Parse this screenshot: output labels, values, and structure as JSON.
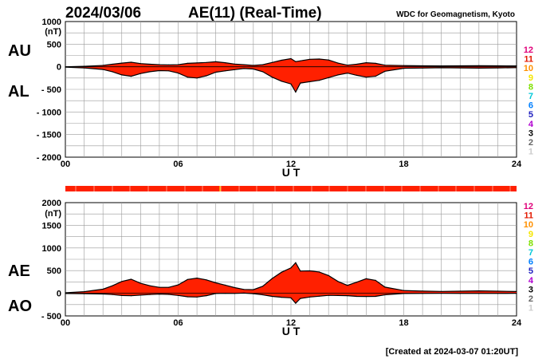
{
  "header": {
    "date": "2024/03/06",
    "title": "AE(11) (Real-Time)",
    "source": "WDC for Geomagnetism, Kyoto"
  },
  "footer": {
    "created": "[Created at 2024-03-07 01:20UT]"
  },
  "level_scale": [
    {
      "label": "12",
      "color": "#e0007a"
    },
    {
      "label": "11",
      "color": "#e31a00"
    },
    {
      "label": "10",
      "color": "#ff9000"
    },
    {
      "label": "9",
      "color": "#f5e600"
    },
    {
      "label": "8",
      "color": "#7fe000"
    },
    {
      "label": "7",
      "color": "#00c8d8"
    },
    {
      "label": "6",
      "color": "#0080ff"
    },
    {
      "label": "5",
      "color": "#2020c0"
    },
    {
      "label": "4",
      "color": "#b000d0"
    },
    {
      "label": "3",
      "color": "#000000"
    },
    {
      "label": "2",
      "color": "#666666"
    },
    {
      "label": "1",
      "color": "#cccccc"
    }
  ],
  "colors": {
    "fill": "#ff2000",
    "bar": "#ff2000",
    "line": "#000000",
    "grid": "#9a9a9a"
  },
  "station_bar": {
    "level": "11"
  },
  "chart_data": [
    {
      "type": "area",
      "title": "AU / AL",
      "unit": "(nT)",
      "xlabel": "U T",
      "x_ticks": [
        "00",
        "06",
        "12",
        "18",
        "24"
      ],
      "xlim": [
        0,
        24
      ],
      "ylim": [
        -2000,
        1000
      ],
      "y_ticks": [
        "1000",
        "500",
        "0",
        "- 500",
        "- 1000",
        "- 1500",
        "- 2000"
      ],
      "y_tick_values": [
        1000,
        500,
        0,
        -500,
        -1000,
        -1500,
        -2000
      ],
      "series_labels": [
        "AU",
        "AL"
      ],
      "x": [
        0,
        1,
        2,
        2.5,
        3,
        3.5,
        4,
        4.5,
        5,
        5.5,
        6,
        6.5,
        7,
        7.5,
        8,
        8.5,
        9,
        9.5,
        10,
        10.5,
        11,
        11.5,
        12,
        12.25,
        12.5,
        13,
        13.5,
        14,
        14.5,
        15,
        15.5,
        16,
        16.5,
        17,
        18,
        19,
        20,
        21,
        22,
        23,
        24
      ],
      "series": [
        {
          "name": "AU",
          "values": [
            0,
            10,
            30,
            55,
            80,
            100,
            70,
            55,
            45,
            40,
            45,
            75,
            85,
            95,
            110,
            90,
            60,
            45,
            30,
            45,
            95,
            145,
            180,
            115,
            130,
            165,
            170,
            150,
            80,
            35,
            55,
            90,
            75,
            35,
            25,
            20,
            18,
            20,
            22,
            20,
            18
          ]
        },
        {
          "name": "AL",
          "values": [
            -10,
            -25,
            -60,
            -110,
            -180,
            -210,
            -150,
            -110,
            -85,
            -90,
            -140,
            -230,
            -250,
            -200,
            -120,
            -90,
            -65,
            -40,
            -50,
            -110,
            -230,
            -320,
            -380,
            -560,
            -360,
            -330,
            -300,
            -240,
            -180,
            -140,
            -190,
            -230,
            -210,
            -100,
            -35,
            -28,
            -22,
            -26,
            -30,
            -25,
            -20
          ]
        }
      ]
    },
    {
      "type": "area",
      "title": "AE / AO",
      "unit": "(nT)",
      "xlabel": "U T",
      "x_ticks": [
        "00",
        "06",
        "12",
        "18",
        "24"
      ],
      "xlim": [
        0,
        24
      ],
      "ylim": [
        -500,
        2000
      ],
      "y_ticks": [
        "2000",
        "1500",
        "1000",
        "500",
        "0",
        "- 500"
      ],
      "y_tick_values": [
        2000,
        1500,
        1000,
        500,
        0,
        -500
      ],
      "series_labels": [
        "AE",
        "AO"
      ],
      "x": [
        0,
        1,
        2,
        2.5,
        3,
        3.5,
        4,
        4.5,
        5,
        5.5,
        6,
        6.5,
        7,
        7.5,
        8,
        8.5,
        9,
        9.5,
        10,
        10.5,
        11,
        11.5,
        12,
        12.25,
        12.5,
        13,
        13.5,
        14,
        14.5,
        15,
        15.5,
        16,
        16.5,
        17,
        18,
        19,
        20,
        21,
        22,
        23,
        24
      ],
      "series": [
        {
          "name": "AE",
          "values": [
            10,
            35,
            90,
            165,
            260,
            310,
            220,
            165,
            130,
            130,
            185,
            305,
            335,
            295,
            230,
            180,
            125,
            85,
            80,
            155,
            325,
            465,
            560,
            675,
            490,
            495,
            470,
            390,
            260,
            175,
            245,
            320,
            285,
            135,
            60,
            48,
            40,
            46,
            52,
            45,
            38
          ]
        },
        {
          "name": "AO",
          "values": [
            -5,
            -8,
            -15,
            -28,
            -50,
            -55,
            -40,
            -28,
            -20,
            -25,
            -48,
            -78,
            -82,
            -53,
            -5,
            0,
            -3,
            3,
            -10,
            -33,
            -68,
            -88,
            -100,
            -220,
            -115,
            -83,
            -65,
            -45,
            -50,
            -53,
            -68,
            -70,
            -68,
            -33,
            -5,
            -4,
            -2,
            -3,
            -4,
            -3,
            -1
          ]
        }
      ]
    }
  ]
}
